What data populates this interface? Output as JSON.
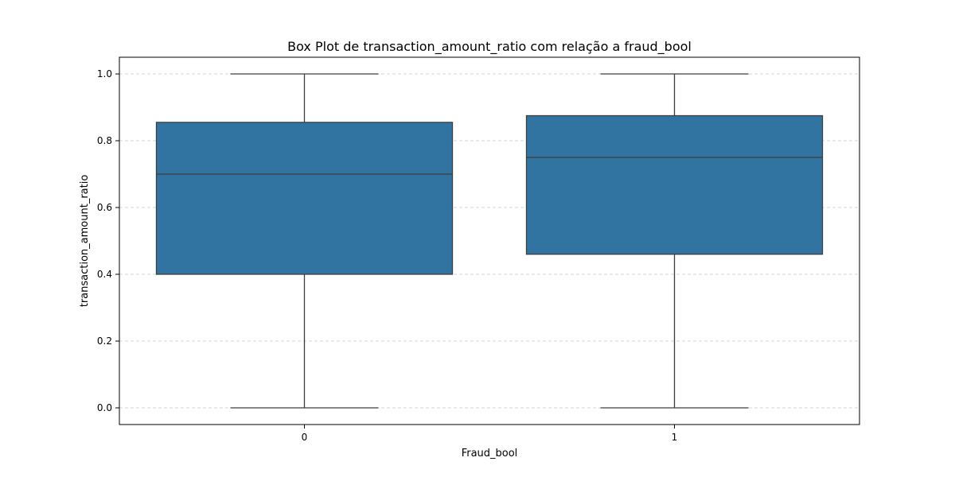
{
  "chart_data": {
    "type": "box",
    "title": "Box Plot de transaction_amount_ratio com relação a fraud_bool",
    "xlabel": "Fraud_bool",
    "ylabel": "transaction_amount_ratio",
    "categories": [
      "0",
      "1"
    ],
    "boxes": [
      {
        "category": "0",
        "min": 0.0,
        "q1": 0.4,
        "median": 0.7,
        "q3": 0.855,
        "max": 1.0
      },
      {
        "category": "1",
        "min": 0.0,
        "q1": 0.46,
        "median": 0.75,
        "q3": 0.875,
        "max": 1.0
      }
    ],
    "ylim": [
      -0.05,
      1.05
    ],
    "yticks": [
      0.0,
      0.2,
      0.4,
      0.6,
      0.8,
      1.0
    ],
    "ytick_labels": [
      "0.0",
      "0.2",
      "0.4",
      "0.6",
      "0.8",
      "1.0"
    ],
    "grid": {
      "y": true,
      "style": "dashed"
    },
    "colors": {
      "box_fill": "#3274a1",
      "line": "#3d3d3d",
      "grid": "#c8c8c8"
    }
  }
}
